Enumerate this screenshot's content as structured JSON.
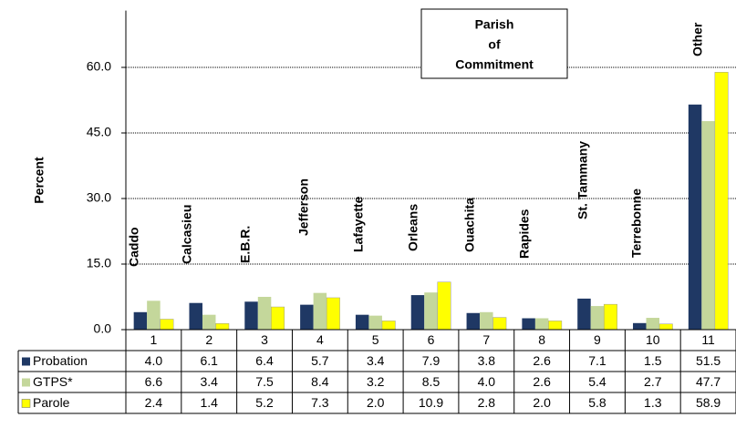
{
  "chart_data": {
    "type": "bar",
    "title": [
      "Parish",
      "of",
      "Commitment"
    ],
    "y_label": "Percent",
    "categories": [
      "1",
      "2",
      "3",
      "4",
      "5",
      "6",
      "7",
      "8",
      "9",
      "10",
      "11"
    ],
    "annotations": [
      "Caddo",
      "Calcasieu",
      "E.B.R.",
      "Jefferson",
      "Lafayette",
      "Orleans",
      "Ouachita",
      "Rapides",
      "St. Tammany",
      "Terrebonne",
      "Other"
    ],
    "series": [
      {
        "name": "Probation",
        "color": "#1f3864",
        "values": [
          4.0,
          6.1,
          6.4,
          5.7,
          3.4,
          7.9,
          3.8,
          2.6,
          7.1,
          1.5,
          51.5
        ],
        "value_labels": [
          "4.0",
          "6.1",
          "6.4",
          "5.7",
          "3.4",
          "7.9",
          "3.8",
          "2.6",
          "7.1",
          "1.5",
          "51.5"
        ]
      },
      {
        "name": "GTPS*",
        "color": "#c4d79b",
        "values": [
          6.6,
          3.4,
          7.5,
          8.4,
          3.2,
          8.5,
          4.0,
          2.6,
          5.4,
          2.7,
          47.7
        ],
        "value_labels": [
          "6.6",
          "3.4",
          "7.5",
          "8.4",
          "3.2",
          "8.5",
          "4.0",
          "2.6",
          "5.4",
          "2.7",
          "47.7"
        ]
      },
      {
        "name": "Parole",
        "color": "#ffff00",
        "values": [
          2.4,
          1.4,
          5.2,
          7.3,
          2.0,
          10.9,
          2.8,
          2.0,
          5.8,
          1.3,
          58.9
        ],
        "value_labels": [
          "2.4",
          "1.4",
          "5.2",
          "7.3",
          "2.0",
          "10.9",
          "2.8",
          "2.0",
          "5.8",
          "1.3",
          "58.9"
        ]
      }
    ],
    "ylim": [
      0,
      73
    ],
    "yticks": [
      {
        "value": 0,
        "label": "0.0"
      },
      {
        "value": 15,
        "label": "15.0"
      },
      {
        "value": 30,
        "label": "30.0"
      },
      {
        "value": 45,
        "label": "45.0"
      },
      {
        "value": 60,
        "label": "60.0"
      }
    ],
    "grid": true
  }
}
